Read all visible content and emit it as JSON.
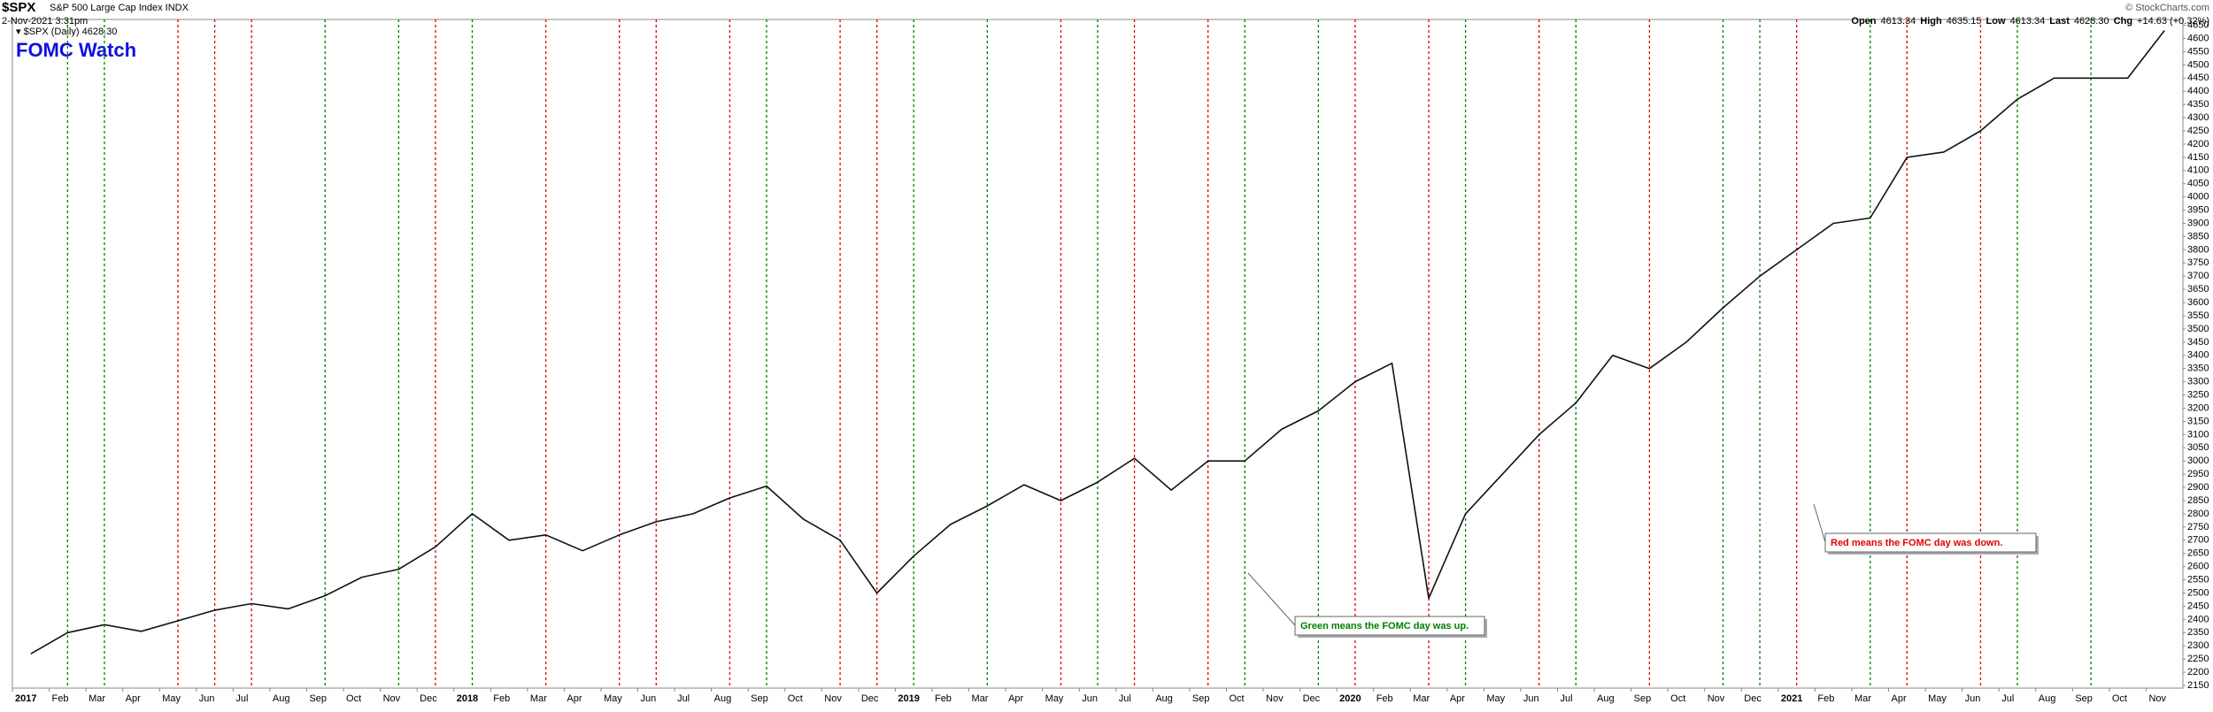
{
  "chart_data": {
    "type": "line",
    "symbol": "$SPX",
    "subtitle": "S&P 500 Large Cap Index INDX",
    "timestamp": "2-Nov-2021 3:31pm",
    "copyright": "© StockCharts.com",
    "quote": [
      "Open",
      "4613.34",
      "High",
      "4635.15",
      "Low",
      "4613.34",
      "Last",
      "4628.30",
      "Chg",
      "+14.63 (+0.32%)"
    ],
    "legend_label": "▾ $SPX (Daily) 4628.30",
    "title": "FOMC Watch",
    "annotations": [
      {
        "text": "Green means the FOMC day was up.",
        "color": "#008000",
        "at": "2019-07"
      },
      {
        "text": "Red means the FOMC day was down.",
        "color": "#e00000",
        "at": "2020-10"
      }
    ],
    "x": [
      "2017-01",
      "2017-02",
      "2017-03",
      "2017-04",
      "2017-05",
      "2017-06",
      "2017-07",
      "2017-08",
      "2017-09",
      "2017-10",
      "2017-11",
      "2017-12",
      "2018-01",
      "2018-02",
      "2018-03",
      "2018-04",
      "2018-05",
      "2018-06",
      "2018-07",
      "2018-08",
      "2018-09",
      "2018-10",
      "2018-11",
      "2018-12",
      "2019-01",
      "2019-02",
      "2019-03",
      "2019-04",
      "2019-05",
      "2019-06",
      "2019-07",
      "2019-08",
      "2019-09",
      "2019-10",
      "2019-11",
      "2019-12",
      "2020-01",
      "2020-02",
      "2020-03",
      "2020-04",
      "2020-05",
      "2020-06",
      "2020-07",
      "2020-08",
      "2020-09",
      "2020-10",
      "2020-11",
      "2020-12",
      "2021-01",
      "2021-02",
      "2021-03",
      "2021-04",
      "2021-05",
      "2021-06",
      "2021-07",
      "2021-08",
      "2021-09",
      "2021-10",
      "2021-11"
    ],
    "series": [
      {
        "name": "$SPX",
        "color": "#111111",
        "values": [
          2270,
          2350,
          2380,
          2355,
          2395,
          2435,
          2460,
          2440,
          2490,
          2560,
          2590,
          2675,
          2800,
          2700,
          2720,
          2660,
          2720,
          2770,
          2800,
          2860,
          2905,
          2780,
          2700,
          2500,
          2640,
          2760,
          2830,
          2910,
          2850,
          2920,
          3010,
          2890,
          3000,
          3000,
          3120,
          3190,
          3300,
          3370,
          2480,
          2800,
          2950,
          3100,
          3220,
          3400,
          3350,
          3450,
          3580,
          3700,
          3800,
          3900,
          3920,
          4150,
          4170,
          4250,
          4370,
          4450,
          4450,
          4450,
          4630
        ]
      }
    ],
    "fomc": [
      {
        "x": "2017-02",
        "color": "#008000"
      },
      {
        "x": "2017-03",
        "color": "#008000"
      },
      {
        "x": "2017-05",
        "color": "#e00000"
      },
      {
        "x": "2017-06",
        "color": "#e00000"
      },
      {
        "x": "2017-07",
        "color": "#e00000"
      },
      {
        "x": "2017-09",
        "color": "#008000"
      },
      {
        "x": "2017-11",
        "color": "#008000"
      },
      {
        "x": "2017-12",
        "color": "#e00000"
      },
      {
        "x": "2018-01",
        "color": "#008000"
      },
      {
        "x": "2018-03",
        "color": "#e00000"
      },
      {
        "x": "2018-05",
        "color": "#e00000"
      },
      {
        "x": "2018-06",
        "color": "#e00000"
      },
      {
        "x": "2018-08",
        "color": "#e00000"
      },
      {
        "x": "2018-09",
        "color": "#008000"
      },
      {
        "x": "2018-11",
        "color": "#e00000"
      },
      {
        "x": "2018-12",
        "color": "#e00000"
      },
      {
        "x": "2019-01",
        "color": "#008000"
      },
      {
        "x": "2019-03",
        "color": "#008000"
      },
      {
        "x": "2019-05",
        "color": "#e00000"
      },
      {
        "x": "2019-06",
        "color": "#008000"
      },
      {
        "x": "2019-07",
        "color": "#e00000"
      },
      {
        "x": "2019-09",
        "color": "#e00000"
      },
      {
        "x": "2019-10",
        "color": "#008000"
      },
      {
        "x": "2019-12",
        "color": "#008000"
      },
      {
        "x": "2020-01",
        "color": "#e00000"
      },
      {
        "x": "2020-03",
        "color": "#e00000"
      },
      {
        "x": "2020-04",
        "color": "#008000"
      },
      {
        "x": "2020-06",
        "color": "#e00000"
      },
      {
        "x": "2020-07",
        "color": "#008000"
      },
      {
        "x": "2020-09",
        "color": "#e00000"
      },
      {
        "x": "2020-11",
        "color": "#008000"
      },
      {
        "x": "2020-12",
        "color": "#008000"
      },
      {
        "x": "2021-01",
        "color": "#e00000"
      },
      {
        "x": "2021-03",
        "color": "#008000"
      },
      {
        "x": "2021-04",
        "color": "#e00000"
      },
      {
        "x": "2021-06",
        "color": "#e00000"
      },
      {
        "x": "2021-07",
        "color": "#008000"
      },
      {
        "x": "2021-09",
        "color": "#008000"
      }
    ],
    "xlim": [
      "2017-01",
      "2021-11"
    ],
    "xticks": [
      {
        "value": "2017-01",
        "label": "2017"
      },
      {
        "value": "2017-02",
        "label": "Feb"
      },
      {
        "value": "2017-03",
        "label": "Mar"
      },
      {
        "value": "2017-04",
        "label": "Apr"
      },
      {
        "value": "2017-05",
        "label": "May"
      },
      {
        "value": "2017-06",
        "label": "Jun"
      },
      {
        "value": "2017-07",
        "label": "Jul"
      },
      {
        "value": "2017-08",
        "label": "Aug"
      },
      {
        "value": "2017-09",
        "label": "Sep"
      },
      {
        "value": "2017-10",
        "label": "Oct"
      },
      {
        "value": "2017-11",
        "label": "Nov"
      },
      {
        "value": "2017-12",
        "label": "Dec"
      },
      {
        "value": "2018-01",
        "label": "2018"
      },
      {
        "value": "2018-02",
        "label": "Feb"
      },
      {
        "value": "2018-03",
        "label": "Mar"
      },
      {
        "value": "2018-04",
        "label": "Apr"
      },
      {
        "value": "2018-05",
        "label": "May"
      },
      {
        "value": "2018-06",
        "label": "Jun"
      },
      {
        "value": "2018-07",
        "label": "Jul"
      },
      {
        "value": "2018-08",
        "label": "Aug"
      },
      {
        "value": "2018-09",
        "label": "Sep"
      },
      {
        "value": "2018-10",
        "label": "Oct"
      },
      {
        "value": "2018-11",
        "label": "Nov"
      },
      {
        "value": "2018-12",
        "label": "Dec"
      },
      {
        "value": "2019-01",
        "label": "2019"
      },
      {
        "value": "2019-02",
        "label": "Feb"
      },
      {
        "value": "2019-03",
        "label": "Mar"
      },
      {
        "value": "2019-04",
        "label": "Apr"
      },
      {
        "value": "2019-05",
        "label": "May"
      },
      {
        "value": "2019-06",
        "label": "Jun"
      },
      {
        "value": "2019-07",
        "label": "Jul"
      },
      {
        "value": "2019-08",
        "label": "Aug"
      },
      {
        "value": "2019-09",
        "label": "Sep"
      },
      {
        "value": "2019-10",
        "label": "Oct"
      },
      {
        "value": "2019-11",
        "label": "Nov"
      },
      {
        "value": "2019-12",
        "label": "Dec"
      },
      {
        "value": "2020-01",
        "label": "2020"
      },
      {
        "value": "2020-02",
        "label": "Feb"
      },
      {
        "value": "2020-03",
        "label": "Mar"
      },
      {
        "value": "2020-04",
        "label": "Apr"
      },
      {
        "value": "2020-05",
        "label": "May"
      },
      {
        "value": "2020-06",
        "label": "Jun"
      },
      {
        "value": "2020-07",
        "label": "Jul"
      },
      {
        "value": "2020-08",
        "label": "Aug"
      },
      {
        "value": "2020-09",
        "label": "Sep"
      },
      {
        "value": "2020-10",
        "label": "Oct"
      },
      {
        "value": "2020-11",
        "label": "Nov"
      },
      {
        "value": "2020-12",
        "label": "Dec"
      },
      {
        "value": "2021-01",
        "label": "2021"
      },
      {
        "value": "2021-02",
        "label": "Feb"
      },
      {
        "value": "2021-03",
        "label": "Mar"
      },
      {
        "value": "2021-04",
        "label": "Apr"
      },
      {
        "value": "2021-05",
        "label": "May"
      },
      {
        "value": "2021-06",
        "label": "Jun"
      },
      {
        "value": "2021-07",
        "label": "Jul"
      },
      {
        "value": "2021-08",
        "label": "Aug"
      },
      {
        "value": "2021-09",
        "label": "Sep"
      },
      {
        "value": "2021-10",
        "label": "Oct"
      },
      {
        "value": "2021-11",
        "label": "Nov"
      }
    ],
    "ylim": [
      2140,
      4672
    ],
    "yticks": [
      2150,
      2200,
      2250,
      2300,
      2350,
      2400,
      2450,
      2500,
      2550,
      2600,
      2650,
      2700,
      2750,
      2800,
      2850,
      2900,
      2950,
      3000,
      3050,
      3100,
      3150,
      3200,
      3250,
      3300,
      3350,
      3400,
      3450,
      3500,
      3550,
      3600,
      3650,
      3700,
      3750,
      3800,
      3850,
      3900,
      3950,
      4000,
      4050,
      4100,
      4150,
      4200,
      4250,
      4300,
      4350,
      4400,
      4450,
      4500,
      4550,
      4600,
      4650
    ]
  }
}
